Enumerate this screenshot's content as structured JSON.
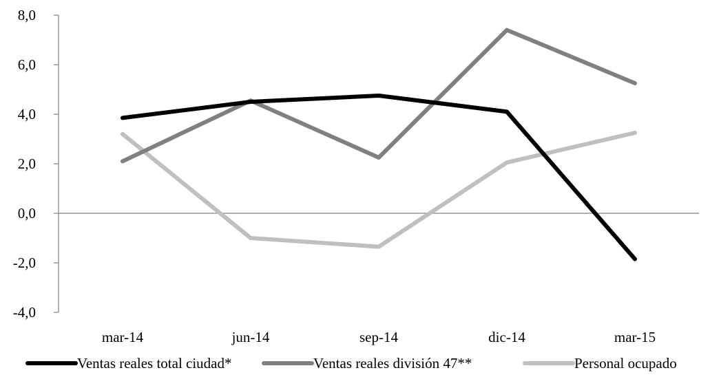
{
  "chart_data": {
    "type": "line",
    "title": "",
    "xlabel": "",
    "ylabel": "",
    "categories": [
      "mar-14",
      "jun-14",
      "sep-14",
      "dic-14",
      "mar-15"
    ],
    "y_ticks": [
      "-4,0",
      "-2,0",
      "0,0",
      "2,0",
      "4,0",
      "6,0",
      "8,0"
    ],
    "ylim": [
      -4,
      8
    ],
    "y_tick_step": 2,
    "grid": false,
    "zero_line": true,
    "legend_position": "bottom",
    "series": [
      {
        "name": "Ventas reales total ciudad*",
        "color": "#000000",
        "values": [
          3.85,
          4.5,
          4.75,
          4.1,
          -1.85
        ]
      },
      {
        "name": "Ventas reales división 47**",
        "color": "#808080",
        "values": [
          2.1,
          4.55,
          2.25,
          7.4,
          5.25
        ]
      },
      {
        "name": "Personal ocupado",
        "color": "#bfbfbf",
        "values": [
          3.2,
          -1.0,
          -1.35,
          2.05,
          3.25
        ]
      }
    ]
  }
}
